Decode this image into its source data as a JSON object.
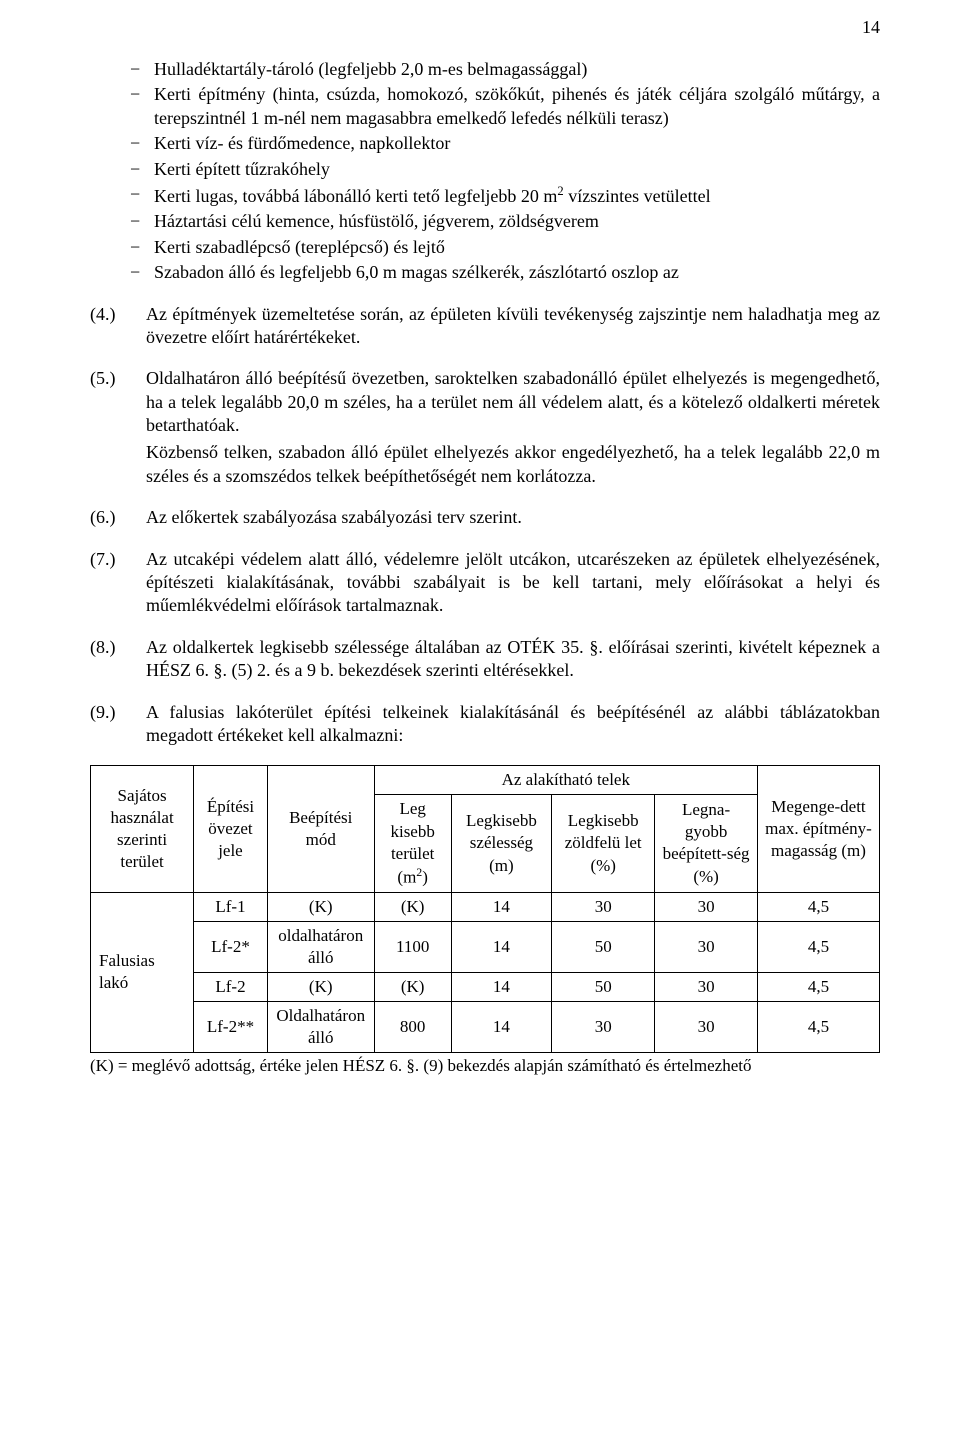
{
  "pageNumber": "14",
  "bullets": [
    "Hulladéktartály-tároló (legfeljebb 2,0 m-es belmagassággal)",
    "Kerti építmény (hinta, csúzda, homokozó, szökőkút, pihenés és játék céljára szolgáló műtárgy, a terepszintnél 1 m-nél nem magasabbra emelkedő lefedés nélküli terasz)",
    "Kerti víz- és fürdőmedence, napkollektor",
    "Kerti épített tűzrakóhely",
    "Kerti lugas, továbbá lábonálló kerti tető legfeljebb 20 m<span class='sup'>2</span> vízszintes vetülettel",
    "Háztartási célú kemence, húsfüstölő, jégverem, zöldségverem",
    "Kerti szabadlépcső (tereplépcső) és lejtő",
    "Szabadon álló és legfeljebb 6,0 m magas szélkerék, zászlótartó oszlop az"
  ],
  "paragraphs": [
    {
      "num": "(4.)",
      "text": "Az építmények üzemeltetése során, az épületen kívüli tevékenység zajszintje nem haladhatja meg az övezetre előírt határértékeket."
    },
    {
      "num": "(5.)",
      "text": "Oldalhatáron álló beépítésű övezetben, saroktelken szabadonálló épület elhelyezés is megengedhető, ha a telek legalább 20,0 m széles, ha a terület nem áll védelem alatt, és a kötelező oldalkerti méretek betarthatóak.\nKözbenső telken, szabadon álló épület elhelyezés akkor engedélyezhető, ha a telek legalább 22,0 m széles és a szomszédos telkek beépíthetőségét nem korlátozza."
    },
    {
      "num": "(6.)",
      "text": "Az előkertek szabályozása szabályozási terv szerint."
    },
    {
      "num": "(7.)",
      "text": "Az utcaképi védelem alatt álló, védelemre jelölt utcákon, utcarészeken az épületek elhelyezésének, építészeti kialakításának, további szabályait is be kell tartani, mely előírásokat a helyi és műemlékvédelmi előírások tartalmaznak."
    },
    {
      "num": "(8.)",
      "text": "Az oldalkertek legkisebb szélessége általában az OTÉK 35. §. előírásai szerinti, kivételt képeznek a HÉSZ 6. §. (5) 2. és a 9 b. bekezdések szerinti eltérésekkel."
    },
    {
      "num": "(9.)",
      "text": "A falusias lakóterület építési telkeinek kialakításánál és beépítésénél az alábbi táblázatokban megadott értékeket kell alkalmazni:"
    }
  ],
  "table": {
    "headerTop": "Az alakítható telek",
    "columns": {
      "c1": "Sajátos használat szerinti terület",
      "c2": "Építési övezet jele",
      "c3": "Beépítési mód",
      "c4": "Leg kisebb terület (m<span class='sup'>2</span>)",
      "c5": "Legkisebb szélesség (m)",
      "c6": "Legkisebb zöldfelü let (%)",
      "c7": "Legna-gyobb beépített-ség (%)",
      "c8": "Megenge-dett max. építmény-magasság (m)"
    },
    "rowLabel": "Falusias lakó",
    "rows": [
      {
        "jele": "Lf-1",
        "mod": "(K)",
        "terulet": "(K)",
        "szel": "14",
        "zold": "30",
        "beep": "30",
        "mag": "4,5"
      },
      {
        "jele": "Lf-2*",
        "mod": "oldalhatáron álló",
        "terulet": "1100",
        "szel": "14",
        "zold": "50",
        "beep": "30",
        "mag": "4,5"
      },
      {
        "jele": "Lf-2",
        "mod": "(K)",
        "terulet": "(K)",
        "szel": "14",
        "zold": "50",
        "beep": "30",
        "mag": "4,5"
      },
      {
        "jele": "Lf-2**",
        "mod": "Oldalhatáron álló",
        "terulet": "800",
        "szel": "14",
        "zold": "30",
        "beep": "30",
        "mag": "4,5"
      }
    ]
  },
  "tableNote": "(K) = meglévő adottság, értéke jelen HÉSZ 6. §. (9) bekezdés alapján számítható és értelmezhető",
  "dash": "−"
}
